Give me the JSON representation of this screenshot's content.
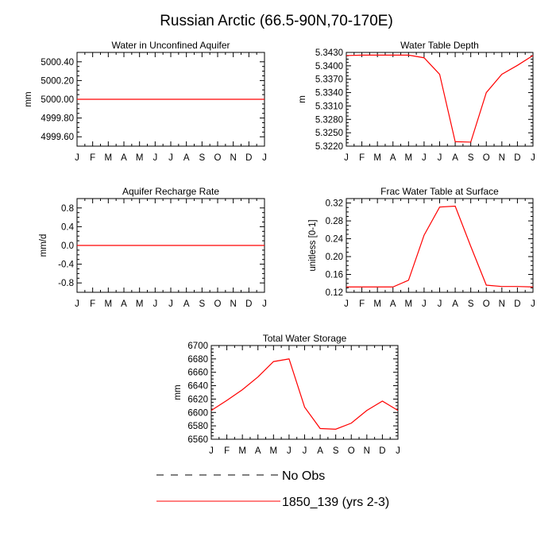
{
  "title": "Russian Arctic (66.5-90N,70-170E)",
  "months": [
    "J",
    "F",
    "M",
    "A",
    "M",
    "J",
    "J",
    "A",
    "S",
    "O",
    "N",
    "D",
    "J"
  ],
  "legend": [
    {
      "label": "No Obs",
      "style": "dashed",
      "color": "#000000"
    },
    {
      "label": "1850_139 (yrs 2-3)",
      "style": "solid",
      "color": "#ff0000"
    }
  ],
  "chart_data": [
    {
      "type": "line",
      "title": "Water in Unconfined Aquifer",
      "ylabel": "mm",
      "ylim": [
        4999.5,
        5000.5
      ],
      "yticks": [
        4999.6,
        4999.8,
        5000.0,
        5000.2,
        5000.4
      ],
      "ytick_labels": [
        "4999.60",
        "4999.80",
        "5000.00",
        "5000.20",
        "5000.40"
      ],
      "series": [
        {
          "name": "1850_139 (yrs 2-3)",
          "color": "#ff0000",
          "values": [
            5000,
            5000,
            5000,
            5000,
            5000,
            5000,
            5000,
            5000,
            5000,
            5000,
            5000,
            5000,
            5000
          ]
        }
      ]
    },
    {
      "type": "line",
      "title": "Water Table Depth",
      "ylabel": "m",
      "ylim": [
        5.322,
        5.343
      ],
      "yticks": [
        5.322,
        5.325,
        5.328,
        5.331,
        5.334,
        5.337,
        5.34,
        5.343
      ],
      "ytick_labels": [
        "5.3220",
        "5.3250",
        "5.3280",
        "5.3310",
        "5.3340",
        "5.3370",
        "5.3400",
        "5.3430"
      ],
      "series": [
        {
          "name": "1850_139 (yrs 2-3)",
          "color": "#ff0000",
          "values": [
            5.3423,
            5.3424,
            5.3424,
            5.3424,
            5.3424,
            5.3418,
            5.3381,
            5.323,
            5.3229,
            5.334,
            5.3381,
            5.3401,
            5.3423
          ]
        }
      ]
    },
    {
      "type": "line",
      "title": "Aquifer Recharge Rate",
      "ylabel": "mm/d",
      "ylim": [
        -1.0,
        1.0
      ],
      "yticks": [
        -0.8,
        -0.4,
        0.0,
        0.4,
        0.8
      ],
      "ytick_labels": [
        "-0.8",
        "-0.4",
        "0.0",
        "0.4",
        "0.8"
      ],
      "series": [
        {
          "name": "1850_139 (yrs 2-3)",
          "color": "#ff0000",
          "values": [
            0,
            0,
            0,
            0,
            0,
            0,
            0,
            0,
            0,
            0,
            0,
            0,
            0
          ]
        }
      ]
    },
    {
      "type": "line",
      "title": "Frac Water Table at Surface",
      "ylabel": "unitless [0-1]",
      "ylim": [
        0.12,
        0.33
      ],
      "yticks": [
        0.12,
        0.16,
        0.2,
        0.24,
        0.28,
        0.32
      ],
      "ytick_labels": [
        "0.12",
        "0.16",
        "0.20",
        "0.24",
        "0.28",
        "0.32"
      ],
      "series": [
        {
          "name": "1850_139 (yrs 2-3)",
          "color": "#ff0000",
          "values": [
            0.132,
            0.132,
            0.132,
            0.132,
            0.147,
            0.248,
            0.311,
            0.313,
            0.223,
            0.136,
            0.133,
            0.133,
            0.132
          ]
        }
      ]
    },
    {
      "type": "line",
      "title": "Total Water Storage",
      "ylabel": "mm",
      "ylim": [
        6560,
        6700
      ],
      "yticks": [
        6560,
        6580,
        6600,
        6620,
        6640,
        6660,
        6680,
        6700
      ],
      "ytick_labels": [
        "6560",
        "6580",
        "6600",
        "6620",
        "6640",
        "6660",
        "6680",
        "6700"
      ],
      "series": [
        {
          "name": "1850_139 (yrs 2-3)",
          "color": "#ff0000",
          "values": [
            6603,
            6618,
            6634,
            6653,
            6676,
            6680,
            6608,
            6576,
            6575,
            6584,
            6603,
            6617,
            6603
          ]
        }
      ]
    }
  ]
}
